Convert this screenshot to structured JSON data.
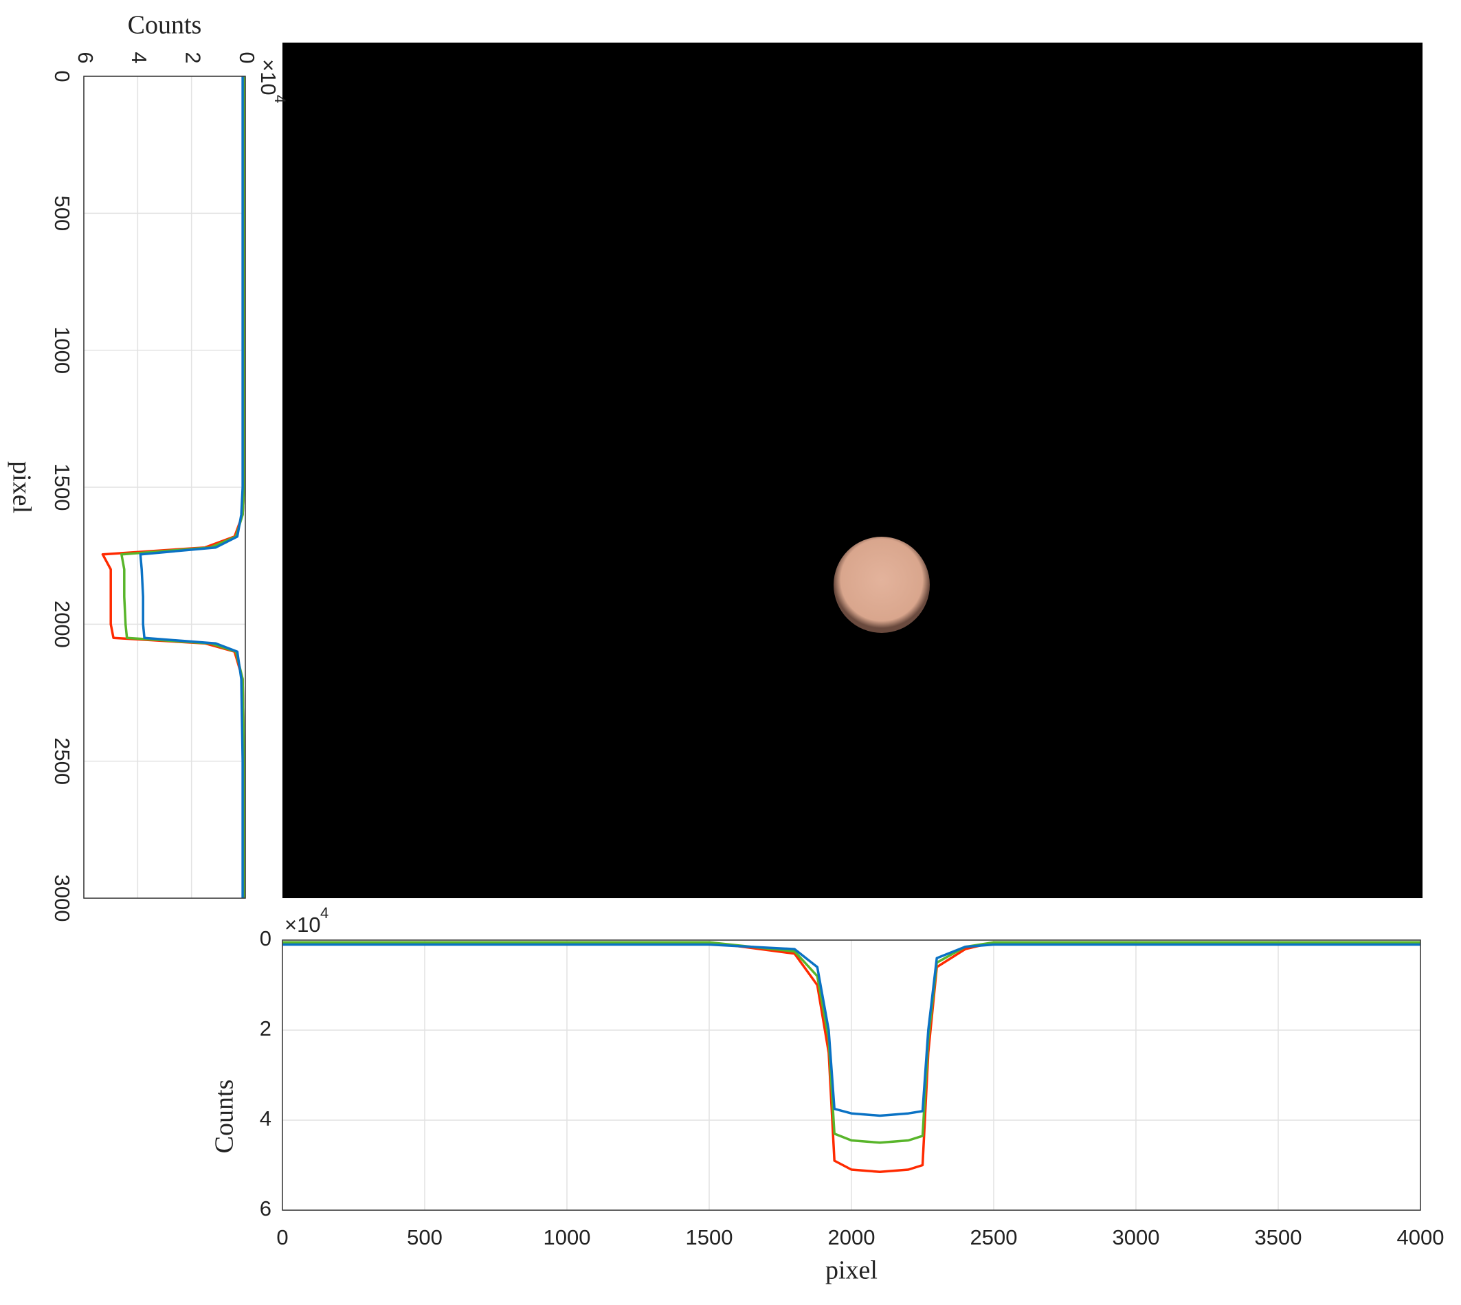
{
  "chart_data": [
    {
      "type": "line",
      "orientation": "vertical",
      "x_label": "pixel",
      "y_label": "Counts",
      "multiplier": "×10",
      "multiplier_exponent": "4",
      "x": [
        0,
        500,
        1000,
        1500,
        1600,
        1680,
        1720,
        1745,
        1800,
        1900,
        2000,
        2050,
        2070,
        2100,
        2200,
        2500,
        3000
      ],
      "xlim": [
        0,
        3000
      ],
      "xticks": [
        0,
        500,
        1000,
        1500,
        2000,
        2500,
        3000
      ],
      "ylim": [
        0,
        6
      ],
      "yticks": [
        0,
        2,
        4,
        6
      ],
      "grid": true,
      "series": [
        {
          "name": "red",
          "color": "#ff2a00",
          "values": [
            0.05,
            0.05,
            0.05,
            0.05,
            0.1,
            0.4,
            1.5,
            5.3,
            5.0,
            5.0,
            5.0,
            4.9,
            1.5,
            0.4,
            0.1,
            0.05,
            0.05
          ]
        },
        {
          "name": "green",
          "color": "#58b52a",
          "values": [
            0.05,
            0.05,
            0.05,
            0.05,
            0.1,
            0.35,
            1.3,
            4.6,
            4.5,
            4.5,
            4.45,
            4.4,
            1.3,
            0.35,
            0.1,
            0.05,
            0.05
          ]
        },
        {
          "name": "blue",
          "color": "#0a72c4",
          "values": [
            0.1,
            0.1,
            0.1,
            0.1,
            0.15,
            0.3,
            1.1,
            3.9,
            3.85,
            3.8,
            3.8,
            3.75,
            1.1,
            0.3,
            0.15,
            0.1,
            0.1
          ]
        }
      ]
    },
    {
      "type": "line",
      "orientation": "horizontal",
      "x_label": "pixel",
      "y_label": "Counts",
      "multiplier": "×10",
      "multiplier_exponent": "4",
      "x": [
        0,
        500,
        1000,
        1500,
        1800,
        1880,
        1920,
        1940,
        2000,
        2100,
        2200,
        2250,
        2270,
        2300,
        2400,
        2500,
        3000,
        3500,
        4000
      ],
      "xlim": [
        0,
        4000
      ],
      "xticks": [
        0,
        500,
        1000,
        1500,
        2000,
        2500,
        3000,
        3500,
        4000
      ],
      "ylim": [
        0,
        6
      ],
      "yticks": [
        0,
        2,
        4,
        6
      ],
      "grid": true,
      "series": [
        {
          "name": "red",
          "color": "#ff2a00",
          "values": [
            0.05,
            0.05,
            0.05,
            0.05,
            0.3,
            1.0,
            2.5,
            4.9,
            5.1,
            5.15,
            5.1,
            5.0,
            2.5,
            0.6,
            0.2,
            0.05,
            0.05,
            0.05,
            0.05
          ]
        },
        {
          "name": "green",
          "color": "#58b52a",
          "values": [
            0.05,
            0.05,
            0.05,
            0.05,
            0.25,
            0.8,
            2.2,
            4.3,
            4.45,
            4.5,
            4.45,
            4.35,
            2.2,
            0.5,
            0.15,
            0.05,
            0.05,
            0.05,
            0.05
          ]
        },
        {
          "name": "blue",
          "color": "#0a72c4",
          "values": [
            0.1,
            0.1,
            0.1,
            0.1,
            0.2,
            0.6,
            2.0,
            3.75,
            3.85,
            3.9,
            3.85,
            3.8,
            2.0,
            0.4,
            0.15,
            0.1,
            0.1,
            0.1,
            0.1
          ]
        }
      ]
    }
  ]
}
